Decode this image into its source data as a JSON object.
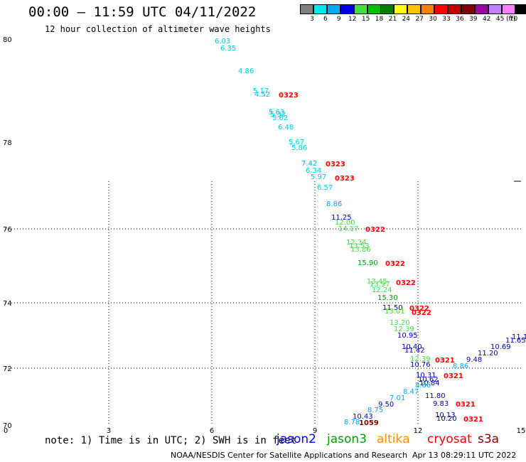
{
  "header": {
    "title": "00:00 – 11:59 UTC 04/11/2022",
    "subtitle": "12 hour collection of altimeter wave heights"
  },
  "legend": {
    "units": "(ft)",
    "bins": [
      {
        "label": "3",
        "color": "#808080"
      },
      {
        "label": "6",
        "color": "#00e8e8"
      },
      {
        "label": "9",
        "color": "#00a8ff"
      },
      {
        "label": "12",
        "color": "#0000e0"
      },
      {
        "label": "15",
        "color": "#40e040"
      },
      {
        "label": "18",
        "color": "#00c000"
      },
      {
        "label": "21",
        "color": "#008000"
      },
      {
        "label": "24",
        "color": "#ffff00"
      },
      {
        "label": "27",
        "color": "#ffc000"
      },
      {
        "label": "30",
        "color": "#ff8000"
      },
      {
        "label": "33",
        "color": "#ff0000"
      },
      {
        "label": "36",
        "color": "#c00000"
      },
      {
        "label": "39",
        "color": "#800000"
      },
      {
        "label": "42",
        "color": "#a000a0"
      },
      {
        "label": "45",
        "color": "#c080ff"
      },
      {
        "label": "70",
        "color": "#ff80ff"
      },
      {
        "label": "",
        "color": "#000000"
      }
    ]
  },
  "axes": {
    "x_ticks": [
      "0",
      "3",
      "6",
      "9",
      "12",
      "15"
    ],
    "y_ticks": [
      "80",
      "78",
      "76",
      "74",
      "72",
      "70"
    ]
  },
  "observations": {
    "swh": [
      {
        "v": "6.03",
        "c": "#00c8e8"
      },
      {
        "v": "6.35",
        "c": "#00c8e8"
      },
      {
        "v": "4.86",
        "c": "#00c8e8"
      },
      {
        "v": "5.17",
        "c": "#00c8e8"
      },
      {
        "v": "4.52",
        "c": "#00c8e8"
      },
      {
        "v": "5.63",
        "c": "#00c8e8"
      },
      {
        "v": "5.32",
        "c": "#00c8e8"
      },
      {
        "v": "5.62",
        "c": "#00c8e8"
      },
      {
        "v": "6.48",
        "c": "#00c8e8"
      },
      {
        "v": "5.67",
        "c": "#00c8e8"
      },
      {
        "v": "5.86",
        "c": "#00c8e8"
      },
      {
        "v": "7.42",
        "c": "#00a8ff"
      },
      {
        "v": "6.34",
        "c": "#00c8e8"
      },
      {
        "v": "5.97",
        "c": "#00c8e8"
      },
      {
        "v": "6.57",
        "c": "#00c8e8"
      },
      {
        "v": "8.86",
        "c": "#00a8ff"
      },
      {
        "v": "11.25",
        "c": "#0000c0"
      },
      {
        "v": "12.00",
        "c": "#40e040"
      },
      {
        "v": "14.17",
        "c": "#40e040"
      },
      {
        "v": "12.34",
        "c": "#40e040"
      },
      {
        "v": "13.53",
        "c": "#40e040"
      },
      {
        "v": "13.86",
        "c": "#40e040"
      },
      {
        "v": "15.90",
        "c": "#00a000"
      },
      {
        "v": "13.45",
        "c": "#40e040"
      },
      {
        "v": "13.97",
        "c": "#40e040"
      },
      {
        "v": "12.24",
        "c": "#40e040"
      },
      {
        "v": "15.30",
        "c": "#00a000"
      },
      {
        "v": "11.50",
        "c": "#0000c0"
      },
      {
        "v": "13.01",
        "c": "#40e040"
      },
      {
        "v": "13.20",
        "c": "#40e040"
      },
      {
        "v": "12.39",
        "c": "#40e040"
      },
      {
        "v": "10.95",
        "c": "#0000c0"
      },
      {
        "v": "10.40",
        "c": "#0000c0"
      },
      {
        "v": "11.42",
        "c": "#0000c0"
      },
      {
        "v": "12.39",
        "c": "#40e040"
      },
      {
        "v": "10.76",
        "c": "#0000c0"
      },
      {
        "v": "10.31",
        "c": "#0000c0"
      },
      {
        "v": "10.62",
        "c": "#0000c0"
      },
      {
        "v": "10.84",
        "c": "#0000c0"
      },
      {
        "v": "8.86",
        "c": "#00a8ff"
      },
      {
        "v": "8.47",
        "c": "#00a8ff"
      },
      {
        "v": "7.01",
        "c": "#00a8ff"
      },
      {
        "v": "9.50",
        "c": "#0000c0"
      },
      {
        "v": "8.75",
        "c": "#00a8ff"
      },
      {
        "v": "10.43",
        "c": "#0000c0"
      },
      {
        "v": "8.78",
        "c": "#00a8ff"
      },
      {
        "v": "11.80",
        "c": "#0000c0"
      },
      {
        "v": "9.83",
        "c": "#0000c0"
      },
      {
        "v": "10.13",
        "c": "#0000c0"
      },
      {
        "v": "10.20",
        "c": "#0000c0"
      },
      {
        "v": "8.86",
        "c": "#00a8ff"
      },
      {
        "v": "9.48",
        "c": "#0000c0"
      },
      {
        "v": "11.20",
        "c": "#0000c0"
      },
      {
        "v": "10.69",
        "c": "#0000c0"
      },
      {
        "v": "11.65",
        "c": "#0000c0"
      },
      {
        "v": "11.1",
        "c": "#0000c0"
      }
    ],
    "times": [
      {
        "v": "0323",
        "c": "#ff0000"
      },
      {
        "v": "0323",
        "c": "#ff0000"
      },
      {
        "v": "0323",
        "c": "#ff0000"
      },
      {
        "v": "0322",
        "c": "#ff0000"
      },
      {
        "v": "0322",
        "c": "#ff0000"
      },
      {
        "v": "0322",
        "c": "#ff0000"
      },
      {
        "v": "0322",
        "c": "#ff0000"
      },
      {
        "v": "0322",
        "c": "#ff0000"
      },
      {
        "v": "0321",
        "c": "#ff0000"
      },
      {
        "v": "0321",
        "c": "#ff0000"
      },
      {
        "v": "0321",
        "c": "#ff0000"
      },
      {
        "v": "0321",
        "c": "#ff0000"
      },
      {
        "v": "1059",
        "c": "#800000"
      }
    ]
  },
  "footer": {
    "note": "note: 1) Time is in UTC; 2) SWH is in feet",
    "satellites": [
      {
        "name": "jason2",
        "color": "#0000ff"
      },
      {
        "name": "jason3",
        "color": "#00a000"
      },
      {
        "name": "altika",
        "color": "#ff9000"
      },
      {
        "name": "cryosat",
        "color": "#ff0000"
      },
      {
        "name": "s3a",
        "color": "#800000"
      }
    ],
    "credit": "NOAA/NESDIS Center for Satellite Applications and Research",
    "timestamp": "Apr 13 08:29:11 UTC 2022"
  }
}
